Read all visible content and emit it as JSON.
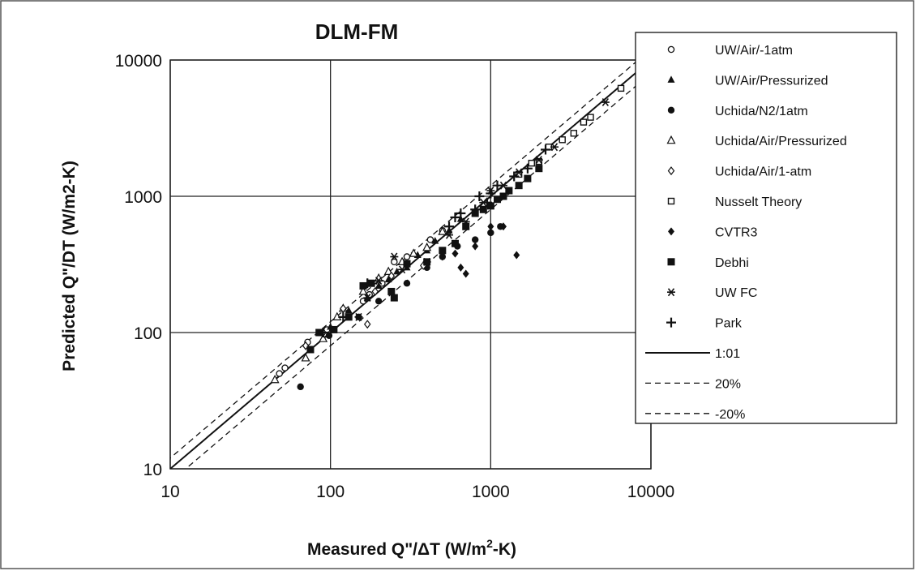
{
  "chart_data": {
    "type": "scatter",
    "title": "DLM-FM",
    "xlabel_parts": [
      "Measured Q\"/",
      "Δ",
      "T (W/m",
      "2",
      "-K)"
    ],
    "ylabel": "Predicted Q\"/DT (W/m2-K)",
    "x_scale": "log",
    "y_scale": "log",
    "xlim": [
      10,
      10000
    ],
    "ylim": [
      10,
      10000
    ],
    "x_ticks": [
      "10",
      "100",
      "1000",
      "10000"
    ],
    "y_ticks": [
      "10",
      "100",
      "1000",
      "10000"
    ],
    "grid": true,
    "legend_position": "right",
    "series": [
      {
        "name": "UW/Air/-1atm",
        "marker": "open-circle",
        "points": [
          [
            48,
            50
          ],
          [
            52,
            55
          ],
          [
            72,
            85
          ],
          [
            95,
            105
          ],
          [
            160,
            170
          ],
          [
            175,
            190
          ],
          [
            210,
            230
          ],
          [
            250,
            330
          ],
          [
            300,
            360
          ],
          [
            420,
            480
          ],
          [
            500,
            560
          ]
        ]
      },
      {
        "name": "UW/Air/Pressurized",
        "marker": "filled-triangle",
        "points": [
          [
            100,
            110
          ],
          [
            130,
            145
          ],
          [
            170,
            180
          ],
          [
            200,
            220
          ],
          [
            230,
            245
          ],
          [
            260,
            280
          ],
          [
            300,
            300
          ],
          [
            350,
            370
          ],
          [
            400,
            400
          ],
          [
            450,
            470
          ],
          [
            550,
            560
          ],
          [
            650,
            680
          ]
        ]
      },
      {
        "name": "Uchida/N2/1atm",
        "marker": "filled-circle",
        "points": [
          [
            65,
            40
          ],
          [
            98,
            95
          ],
          [
            150,
            130
          ],
          [
            200,
            170
          ],
          [
            300,
            230
          ],
          [
            400,
            300
          ],
          [
            500,
            360
          ],
          [
            620,
            430
          ],
          [
            800,
            480
          ],
          [
            1000,
            540
          ],
          [
            1150,
            600
          ]
        ]
      },
      {
        "name": "Uchida/Air/Pressurized",
        "marker": "open-triangle",
        "points": [
          [
            45,
            45
          ],
          [
            70,
            65
          ],
          [
            90,
            90
          ],
          [
            110,
            130
          ],
          [
            120,
            150
          ],
          [
            160,
            200
          ],
          [
            200,
            250
          ],
          [
            230,
            280
          ],
          [
            280,
            330
          ],
          [
            330,
            380
          ],
          [
            400,
            420
          ],
          [
            500,
            550
          ]
        ]
      },
      {
        "name": "Uchida/Air/1-atm",
        "marker": "open-diamond",
        "points": [
          [
            70,
            80
          ],
          [
            90,
            100
          ],
          [
            120,
            150
          ],
          [
            170,
            115
          ],
          [
            190,
            200
          ],
          [
            240,
            260
          ],
          [
            380,
            310
          ]
        ]
      },
      {
        "name": "Nusselt Theory",
        "marker": "open-square",
        "points": [
          [
            1500,
            1450
          ],
          [
            1800,
            1750
          ],
          [
            2000,
            1800
          ],
          [
            2300,
            2300
          ],
          [
            2800,
            2600
          ],
          [
            3300,
            2900
          ],
          [
            3800,
            3500
          ],
          [
            4200,
            3800
          ],
          [
            6500,
            6200
          ]
        ]
      },
      {
        "name": "CVTR3",
        "marker": "filled-diamond",
        "points": [
          [
            500,
            360
          ],
          [
            600,
            380
          ],
          [
            650,
            300
          ],
          [
            700,
            270
          ],
          [
            800,
            430
          ],
          [
            1000,
            600
          ],
          [
            1200,
            600
          ],
          [
            1450,
            370
          ]
        ]
      },
      {
        "name": "Debhi",
        "marker": "filled-square",
        "points": [
          [
            75,
            75
          ],
          [
            85,
            100
          ],
          [
            105,
            105
          ],
          [
            130,
            130
          ],
          [
            160,
            220
          ],
          [
            180,
            230
          ],
          [
            240,
            200
          ],
          [
            250,
            180
          ],
          [
            300,
            320
          ],
          [
            400,
            330
          ],
          [
            500,
            400
          ],
          [
            600,
            450
          ],
          [
            700,
            600
          ],
          [
            800,
            750
          ],
          [
            900,
            800
          ],
          [
            1000,
            850
          ],
          [
            1100,
            950
          ],
          [
            1200,
            1000
          ],
          [
            1300,
            1100
          ],
          [
            1500,
            1200
          ],
          [
            1700,
            1350
          ],
          [
            2000,
            1600
          ]
        ]
      },
      {
        "name": "UW FC",
        "marker": "asterisk",
        "points": [
          [
            150,
            130
          ],
          [
            170,
            180
          ],
          [
            200,
            240
          ],
          [
            250,
            360
          ],
          [
            280,
            290
          ],
          [
            400,
            330
          ],
          [
            550,
            520
          ],
          [
            700,
            650
          ],
          [
            900,
            900
          ],
          [
            1000,
            1100
          ],
          [
            1200,
            1200
          ],
          [
            1500,
            1500
          ],
          [
            2000,
            1850
          ],
          [
            2500,
            2300
          ],
          [
            5200,
            4900
          ]
        ]
      },
      {
        "name": "Park",
        "marker": "plus",
        "points": [
          [
            90,
            100
          ],
          [
            120,
            130
          ],
          [
            170,
            230
          ],
          [
            550,
            600
          ],
          [
            600,
            700
          ],
          [
            650,
            750
          ],
          [
            800,
            800
          ],
          [
            850,
            1000
          ],
          [
            950,
            900
          ],
          [
            1000,
            1050
          ],
          [
            1100,
            1200
          ],
          [
            1400,
            1400
          ],
          [
            1700,
            1600
          ],
          [
            2200,
            2200
          ]
        ]
      }
    ],
    "lines": [
      {
        "name": "1:01",
        "style": "solid",
        "factor": 1.0
      },
      {
        "name": "20%",
        "style": "dashed",
        "factor": 1.2
      },
      {
        "name": "-20%",
        "style": "dashed",
        "factor": 0.8
      }
    ]
  }
}
